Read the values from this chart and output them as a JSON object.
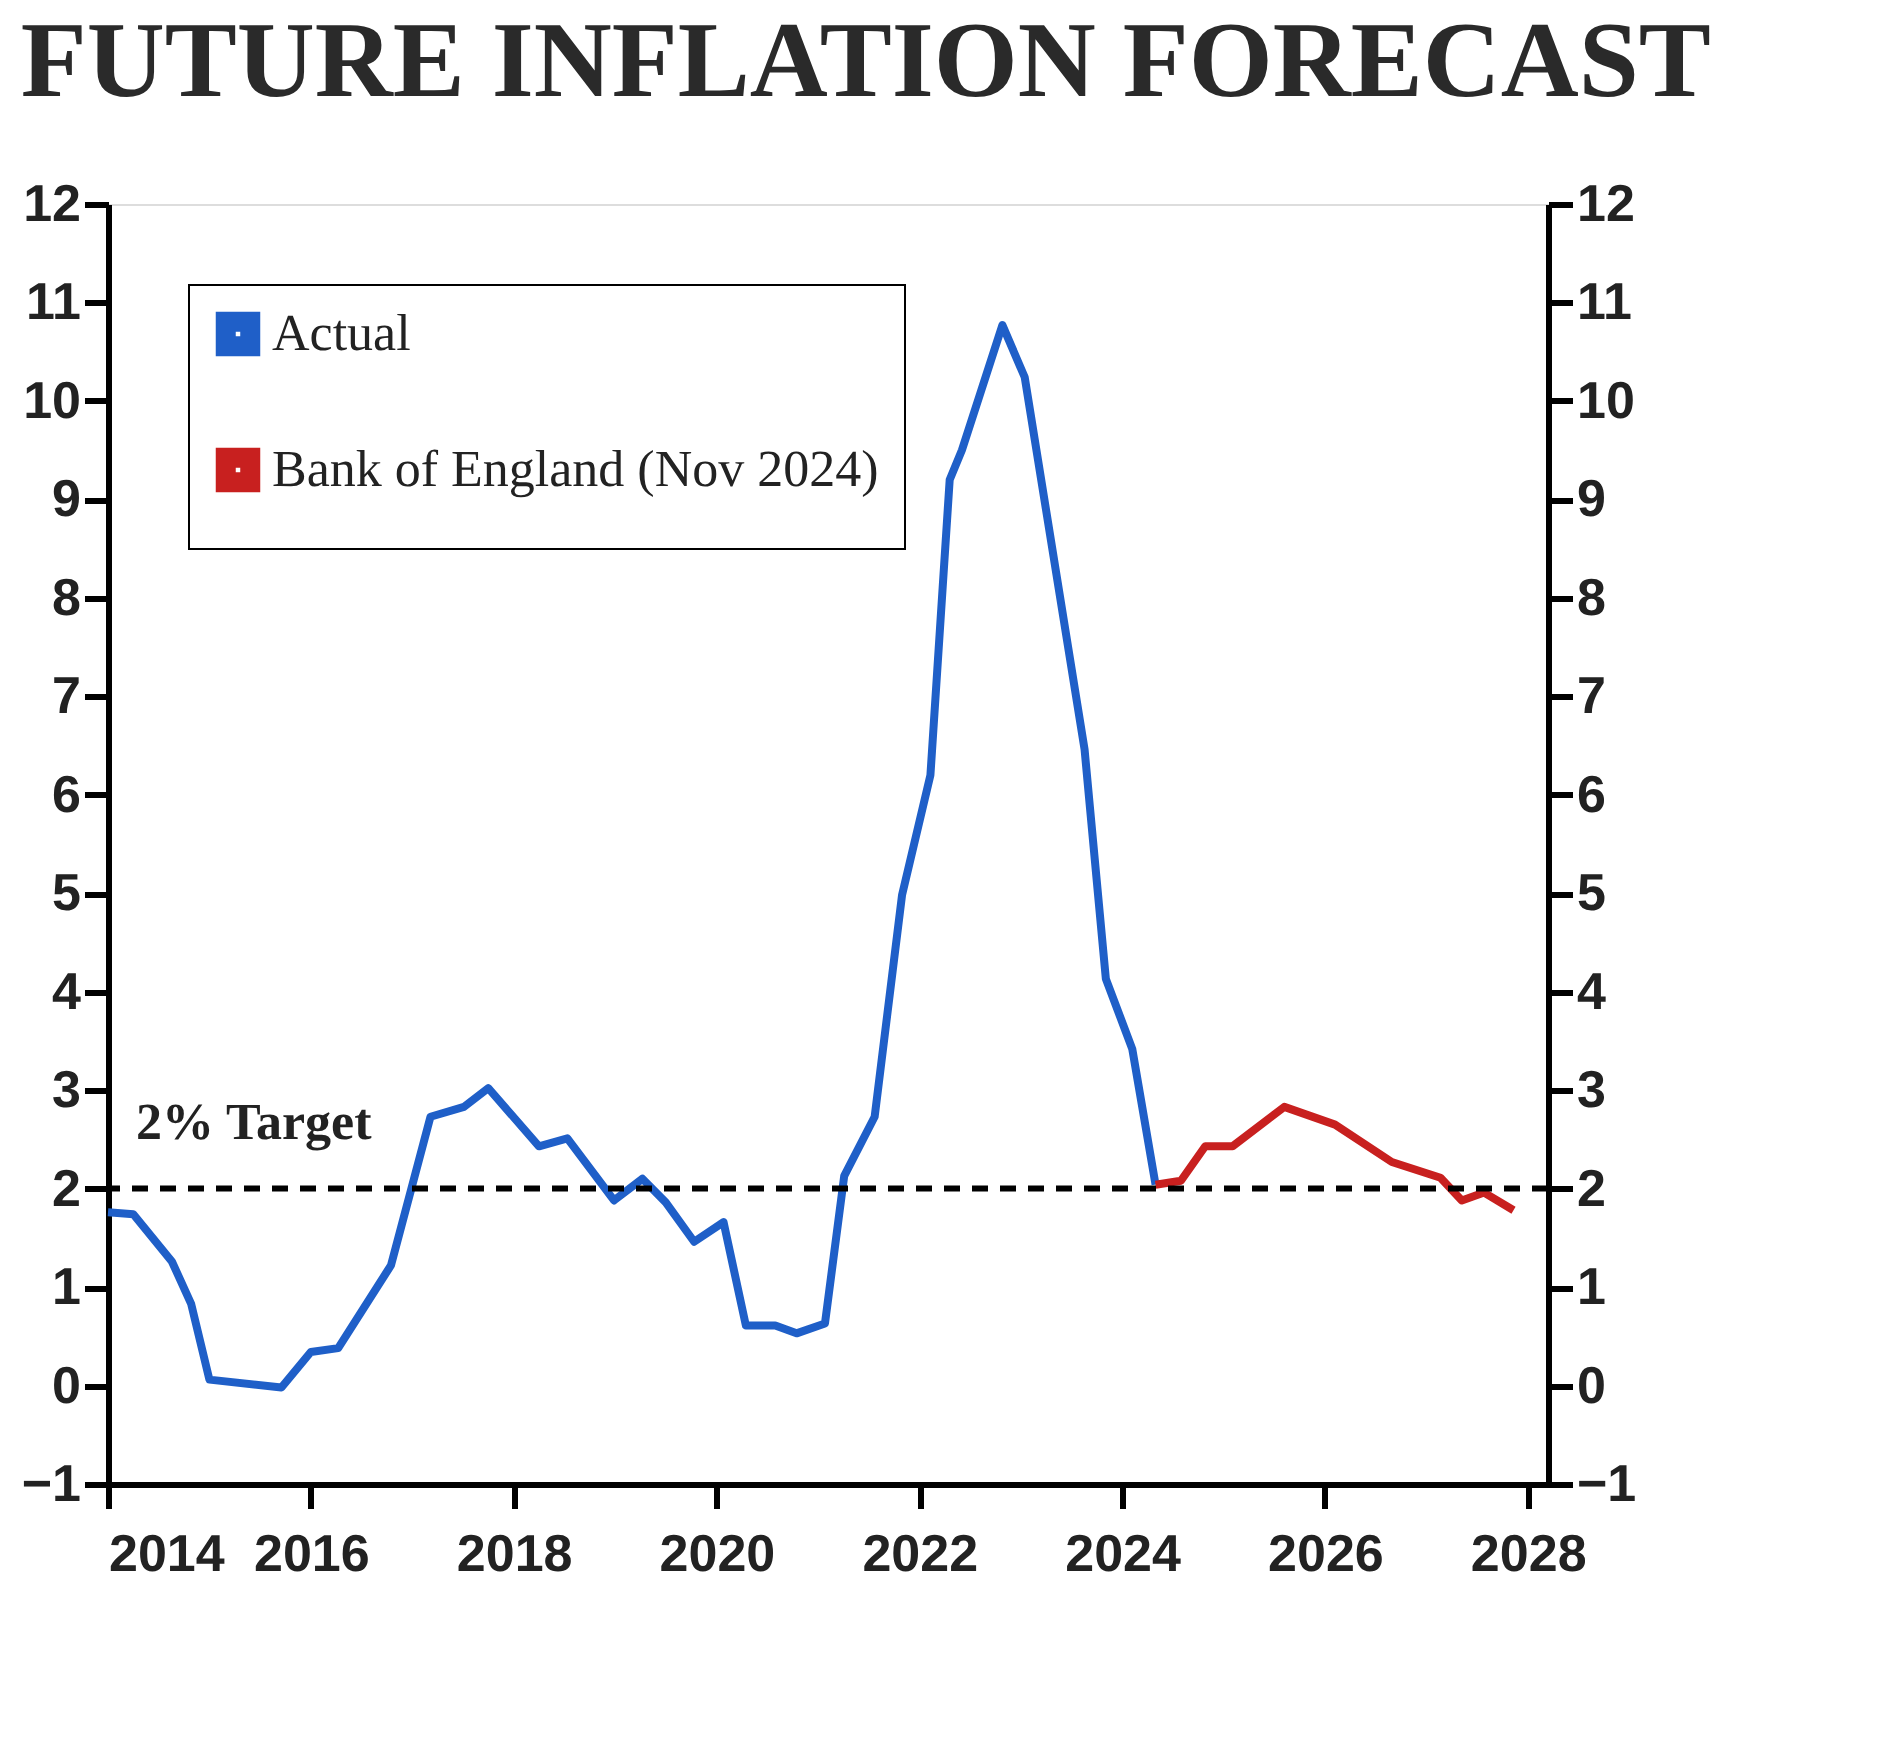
{
  "chart_data": {
    "type": "line",
    "title": "FUTURE INFLATION FORECAST",
    "series": [
      {
        "name": "Actual",
        "color": "#1f5fc8",
        "x": [
          2014.0,
          2014.25,
          2014.63,
          2014.82,
          2015.0,
          2015.71,
          2016.0,
          2016.27,
          2016.79,
          2017.18,
          2017.51,
          2017.75,
          2018.25,
          2018.53,
          2018.99,
          2019.27,
          2019.5,
          2019.78,
          2020.07,
          2020.29,
          2020.58,
          2020.79,
          2021.07,
          2021.26,
          2021.56,
          2021.83,
          2022.11,
          2022.3,
          2022.42,
          2022.82,
          2023.04,
          2023.63,
          2023.84,
          2024.1,
          2024.33
        ],
        "values": [
          1.76,
          1.74,
          1.26,
          0.83,
          0.06,
          -0.02,
          0.34,
          0.38,
          1.22,
          2.73,
          2.83,
          3.02,
          2.43,
          2.51,
          1.88,
          2.1,
          1.86,
          1.46,
          1.66,
          0.61,
          0.61,
          0.53,
          0.63,
          2.13,
          2.73,
          4.98,
          6.2,
          9.2,
          9.5,
          10.77,
          10.24,
          6.46,
          4.13,
          3.42,
          2.04
        ]
      },
      {
        "name": "Bank of England (Nov 2024)",
        "color": "#c8201f",
        "x": [
          2024.33,
          2024.58,
          2024.82,
          2025.09,
          2025.6,
          2026.1,
          2026.66,
          2027.14,
          2027.35,
          2027.57,
          2027.86
        ],
        "values": [
          2.04,
          2.08,
          2.43,
          2.43,
          2.83,
          2.65,
          2.27,
          2.11,
          1.88,
          1.96,
          1.78
        ]
      }
    ],
    "xlim": [
      2014,
      2028.2
    ],
    "xticks": [
      2014,
      2016,
      2018,
      2020,
      2022,
      2024,
      2026,
      2028
    ],
    "ylim": [
      -1,
      12
    ],
    "yticks": [
      -1,
      0,
      1,
      2,
      3,
      4,
      5,
      6,
      7,
      8,
      9,
      10,
      11,
      12
    ],
    "y2lim": [
      -1,
      12
    ],
    "y2ticks": [
      -1,
      0,
      1,
      2,
      3,
      4,
      5,
      6,
      7,
      8,
      9,
      10,
      11,
      12
    ],
    "ref_lines": [
      {
        "axis": "y",
        "value": 2,
        "label": "2% Target",
        "color": "#000000",
        "line_style": "dashed"
      }
    ],
    "legend": "top left",
    "grid": false,
    "marker": "none",
    "line_style": "solid"
  }
}
